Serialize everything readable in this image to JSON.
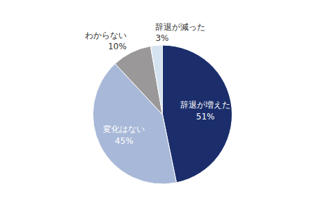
{
  "chart_data": {
    "type": "pie",
    "categories": [
      "辞退が増えた",
      "変化はない",
      "わからない",
      "辞退が減った"
    ],
    "values": [
      51,
      45,
      10,
      3
    ],
    "value_labels": [
      "51%",
      "45%",
      "10%",
      "3%"
    ],
    "colors": [
      "#1b2e6b",
      "#a8b8d8",
      "#9a9898",
      "#d5e3f0"
    ],
    "data_labels": true
  }
}
